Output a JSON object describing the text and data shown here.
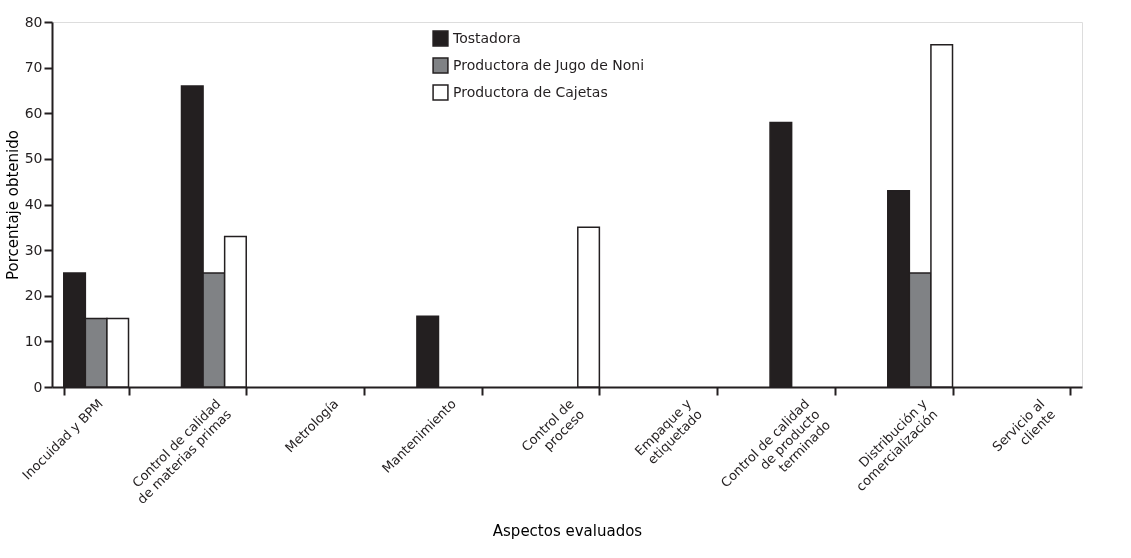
{
  "chart_data": {
    "type": "bar",
    "xlabel": "Aspectos evaluados",
    "ylabel": "Porcentaje obtenido",
    "categories": [
      "Inocuidad y BPM",
      "Control de calidad\nde materias primas",
      "Metrología",
      "Mantenimiento",
      "Control de\nproceso",
      "Empaque y\netiquetado",
      "Control de calidad\nde producto\nterminado",
      "Distribución y\ncomercialización",
      "Servicio al\ncliente"
    ],
    "series": [
      {
        "name": "Tostadora",
        "color": "#231f20",
        "values": [
          25,
          66,
          null,
          15.5,
          null,
          null,
          58,
          43,
          null
        ]
      },
      {
        "name": "Productora de Jugo de Noni",
        "color": "#808285",
        "values": [
          15,
          25,
          null,
          null,
          null,
          null,
          null,
          25,
          null
        ]
      },
      {
        "name": "Productora de Cajetas",
        "color": "#ffffff",
        "values": [
          15,
          33,
          null,
          null,
          35,
          null,
          null,
          75,
          null
        ]
      }
    ],
    "ylim": [
      0,
      80
    ],
    "yticks": [
      0,
      10,
      20,
      30,
      40,
      50,
      60,
      70,
      80
    ],
    "grid": false,
    "legend": "top"
  }
}
